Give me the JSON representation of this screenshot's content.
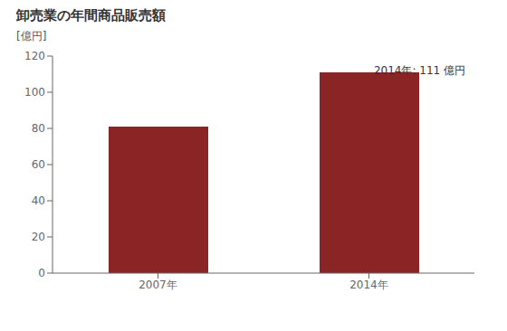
{
  "chart_data": {
    "type": "bar",
    "title": "卸売業の年間商品販売額",
    "ylabel": "[億円]",
    "categories": [
      "2007年",
      "2014年"
    ],
    "values": [
      81,
      111
    ],
    "color": "#8B2525",
    "annotation": "2014年: 111 億円",
    "ylim": [
      0,
      120
    ],
    "yticks": [
      0,
      20,
      40,
      60,
      80,
      100,
      120
    ],
    "grid": false
  }
}
